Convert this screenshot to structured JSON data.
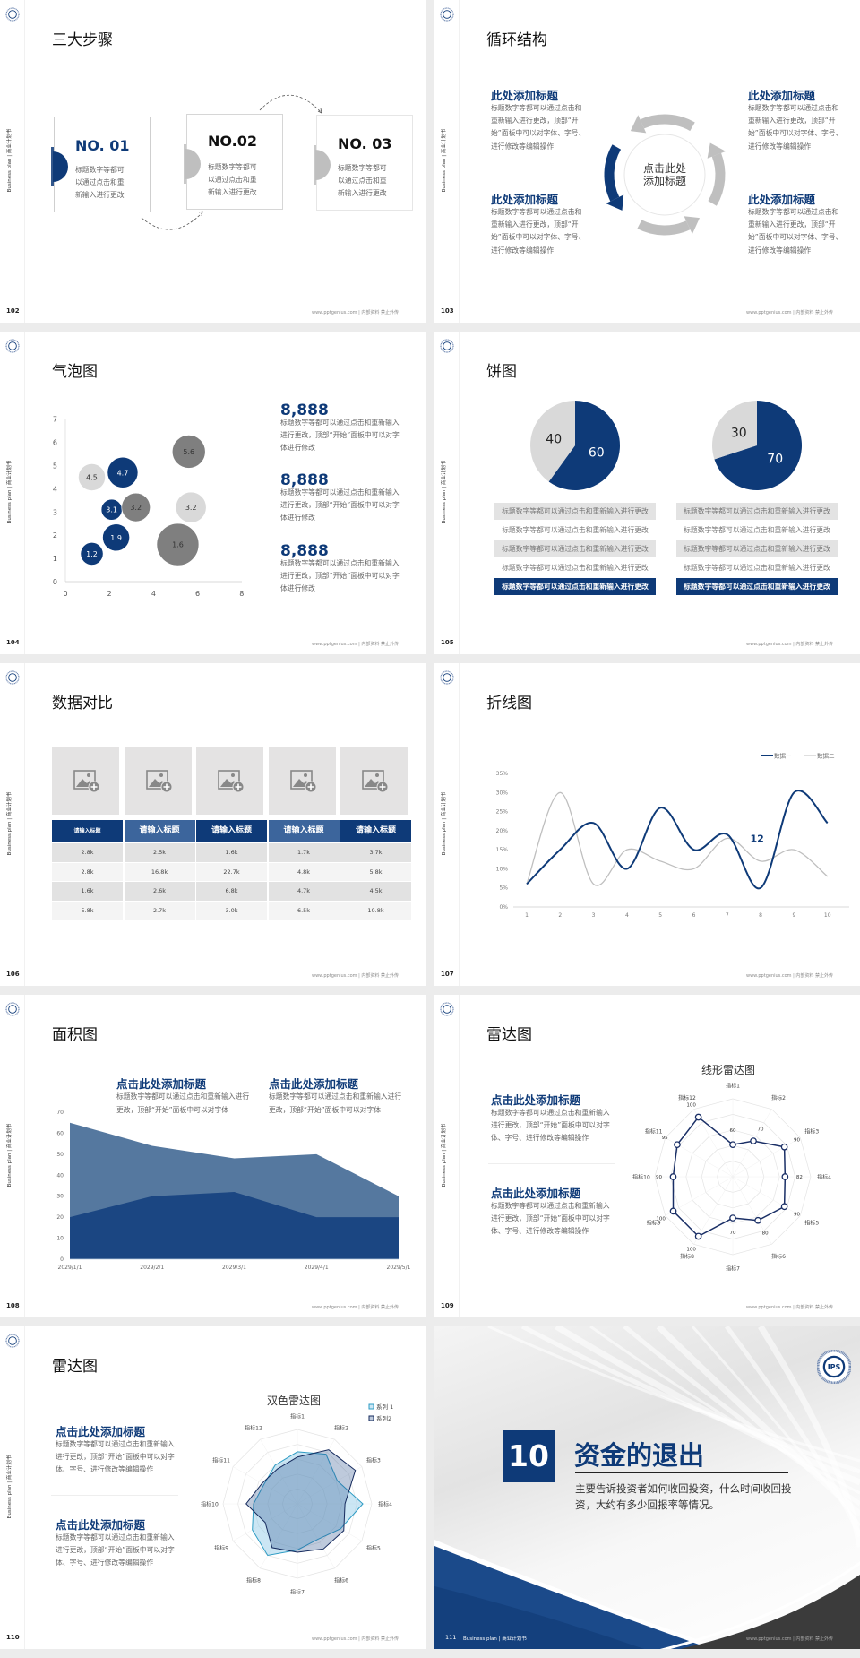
{
  "common": {
    "vertical_label": "Business plan | 商业计划书",
    "footer": "www.pptgenius.com | 内部资料 禁止外传",
    "logo_icon": "university-emblem-icon"
  },
  "colors": {
    "navy": "#0e3a78",
    "gray": "#bfbfbf",
    "dark_gray": "#7f7f7f",
    "light_gray": "#d9d9d9",
    "mid_blue": "#55789f",
    "teal": "#2e9cc4",
    "charcoal": "#3d3d3d"
  },
  "slides": {
    "s102": {
      "page": "102",
      "title": "三大步骤",
      "steps": [
        {
          "label": "NO. 01",
          "text": "标题数字等都可以通过点击和重新输入进行更改"
        },
        {
          "label": "NO.02",
          "text": "标题数字等都可以通过点击和重新输入进行更改"
        },
        {
          "label": "NO. 03",
          "text": "标题数字等都可以通过点击和重新输入进行更改"
        }
      ]
    },
    "s103": {
      "page": "103",
      "title": "循环结构",
      "center": [
        "点击此处",
        "添加标题"
      ],
      "blocks": [
        {
          "heading": "此处添加标题",
          "text": "标题数字等都可以通过点击和重新输入进行更改，顶部“开始”面板中可以对字体、字号、进行修改等编辑操作"
        },
        {
          "heading": "此处添加标题",
          "text": "标题数字等都可以通过点击和重新输入进行更改，顶部“开始”面板中可以对字体、字号、进行修改等编辑操作"
        },
        {
          "heading": "此处添加标题",
          "text": "标题数字等都可以通过点击和重新输入进行更改，顶部“开始”面板中可以对字体、字号、进行修改等编辑操作"
        },
        {
          "heading": "此处添加标题",
          "text": "标题数字等都可以通过点击和重新输入进行更改，顶部“开始”面板中可以对字体、字号、进行修改等编辑操作"
        }
      ]
    },
    "s104": {
      "page": "104",
      "title": "气泡图",
      "stats": [
        {
          "value": "8,888",
          "text": "标题数字等都可以通过点击和重新输入进行更改，顶部“开始”面板中可以对字体进行修改"
        },
        {
          "value": "8,888",
          "text": "标题数字等都可以通过点击和重新输入进行更改，顶部“开始”面板中可以对字体进行修改"
        },
        {
          "value": "8,888",
          "text": "标题数字等都可以通过点击和重新输入进行更改，顶部“开始”面板中可以对字体进行修改"
        }
      ]
    },
    "s105": {
      "page": "105",
      "title": "饼图",
      "lists": [
        [
          "标题数字等都可以通过点击和重新输入进行更改",
          "标题数字等都可以通过点击和重新输入进行更改",
          "标题数字等都可以通过点击和重新输入进行更改",
          "标题数字等都可以通过点击和重新输入进行更改",
          "标题数字等都可以通过点击和重新输入进行更改"
        ],
        [
          "标题数字等都可以通过点击和重新输入进行更改",
          "标题数字等都可以通过点击和重新输入进行更改",
          "标题数字等都可以通过点击和重新输入进行更改",
          "标题数字等都可以通过点击和重新输入进行更改",
          "标题数字等都可以通过点击和重新输入进行更改"
        ]
      ]
    },
    "s106": {
      "page": "106",
      "title": "数据对比",
      "image_icon": "image-add-icon",
      "headers": [
        "请输入标题",
        "请输入标题",
        "请输入标题",
        "请输入标题",
        "请输入标题"
      ],
      "rows": [
        [
          "2.8k",
          "2.5k",
          "1.6k",
          "1.7k",
          "3.7k"
        ],
        [
          "2.8k",
          "16.8k",
          "22.7k",
          "4.8k",
          "5.8k"
        ],
        [
          "1.6k",
          "2.6k",
          "6.8k",
          "4.7k",
          "4.5k"
        ],
        [
          "5.8k",
          "2.7k",
          "3.0k",
          "6.5k",
          "10.8k"
        ]
      ]
    },
    "s107": {
      "page": "107",
      "title": "折线图"
    },
    "s108": {
      "page": "108",
      "title": "面积图",
      "blocks": [
        {
          "heading": "点击此处添加标题",
          "text": "标题数字等都可以通过点击和重新输入进行更改，顶部“开始”面板中可以对字体"
        },
        {
          "heading": "点击此处添加标题",
          "text": "标题数字等都可以通过点击和重新输入进行更改，顶部“开始”面板中可以对字体"
        }
      ]
    },
    "s109": {
      "page": "109",
      "title": "雷达图",
      "blocks": [
        {
          "heading": "点击此处添加标题",
          "text": "标题数字等都可以通过点击和重新输入进行更改，顶部“开始”面板中可以对字体、字号、进行修改等编辑操作"
        },
        {
          "heading": "点击此处添加标题",
          "text": "标题数字等都可以通过点击和重新输入进行更改，顶部“开始”面板中可以对字体、字号、进行修改等编辑操作"
        }
      ]
    },
    "s110": {
      "page": "110",
      "title": "雷达图",
      "blocks": [
        {
          "heading": "点击此处添加标题",
          "text": "标题数字等都可以通过点击和重新输入进行更改，顶部“开始”面板中可以对字体、字号、进行修改等编辑操作"
        },
        {
          "heading": "点击此处添加标题",
          "text": "标题数字等都可以通过点击和重新输入进行更改，顶部“开始”面板中可以对字体、字号、进行修改等编辑操作"
        }
      ]
    },
    "s111": {
      "page": "111",
      "number": "10",
      "title": "资金的退出",
      "description": "主要告诉投资者如何收回投资，什么时间收回投资，大约有多少回报率等情况。",
      "footer_label": "Business plan | 商业计划书",
      "logo_text": "IPS"
    }
  },
  "chart_data": [
    {
      "type": "scatter",
      "subtype": "bubble",
      "xlim": [
        0,
        8
      ],
      "ylim": [
        0,
        7
      ],
      "xticks": [
        "0",
        "2",
        "4",
        "6",
        "8"
      ],
      "yticks": [
        "0",
        "1",
        "2",
        "3",
        "4",
        "5",
        "6",
        "7"
      ],
      "grid": false,
      "points": [
        {
          "x": 1.2,
          "y": 1.2,
          "size": 4,
          "label": "1.2",
          "color": "navy"
        },
        {
          "x": 2.3,
          "y": 1.9,
          "size": 5.7,
          "label": "1.9",
          "color": "navy"
        },
        {
          "x": 2.1,
          "y": 3.1,
          "size": 3.4,
          "label": "3.1",
          "color": "navy"
        },
        {
          "x": 2.6,
          "y": 4.7,
          "size": 7.3,
          "label": "4.7",
          "color": "navy"
        },
        {
          "x": 1.2,
          "y": 4.5,
          "size": 5.7,
          "label": "4.5",
          "color": "light_gray"
        },
        {
          "x": 3.2,
          "y": 3.2,
          "size": 6.4,
          "label": "3.2",
          "color": "dark_gray"
        },
        {
          "x": 5.6,
          "y": 5.6,
          "size": 8.6,
          "label": "5.6",
          "color": "dark_gray"
        },
        {
          "x": 5.7,
          "y": 3.2,
          "size": 7.3,
          "label": "3.2",
          "color": "light_gray"
        },
        {
          "x": 5.1,
          "y": 1.6,
          "size": 13.9,
          "label": "1.6",
          "color": "dark_gray"
        }
      ]
    },
    {
      "type": "pie",
      "values": [
        60,
        40
      ],
      "labels": [
        "60",
        "40"
      ],
      "colors": [
        "navy",
        "light_gray"
      ]
    },
    {
      "type": "pie",
      "values": [
        70,
        30
      ],
      "labels": [
        "70",
        "30"
      ],
      "colors": [
        "navy",
        "light_gray"
      ]
    },
    {
      "type": "line",
      "x": [
        "1",
        "2",
        "3",
        "4",
        "5",
        "6",
        "7",
        "8",
        "9",
        "10"
      ],
      "ylim": [
        0,
        35
      ],
      "yticks": [
        "0%",
        "5%",
        "10%",
        "15%",
        "20%",
        "25%",
        "30%",
        "35%"
      ],
      "grid": false,
      "legend": "top-right",
      "smooth": true,
      "series": [
        {
          "name": "数据一",
          "values": [
            6,
            15,
            22,
            10,
            26,
            15,
            19,
            5,
            30,
            22
          ],
          "color": "navy"
        },
        {
          "name": "数据二",
          "values": [
            6,
            30,
            6,
            15,
            12,
            10,
            18,
            12,
            15,
            8
          ],
          "color": "gray"
        }
      ],
      "annotations": [
        {
          "text": "12",
          "x": 8,
          "y": 18
        }
      ]
    },
    {
      "type": "area",
      "categories": [
        "2029/1/1",
        "2029/2/1",
        "2029/3/1",
        "2029/4/1",
        "2029/5/1"
      ],
      "ylim": [
        0,
        70
      ],
      "yticks": [
        "0",
        "10",
        "20",
        "30",
        "40",
        "50",
        "60",
        "70"
      ],
      "grid": false,
      "series": [
        {
          "values": [
            65,
            54,
            48,
            50,
            30
          ],
          "color": "mid_blue"
        },
        {
          "values": [
            20,
            30,
            32,
            20,
            20
          ],
          "color": "navy"
        }
      ]
    },
    {
      "type": "radar",
      "title": "线形雷达图",
      "categories": [
        "指标1",
        "指标2",
        "指标3",
        "指标4",
        "指标5",
        "指标6",
        "指标7",
        "指标8",
        "指标9",
        "指标10",
        "指标11",
        "指标12"
      ],
      "values": [
        60,
        70,
        90,
        82,
        90,
        80,
        70,
        100,
        100,
        90,
        95,
        100
      ],
      "data_labels": [
        "60",
        "70",
        "90",
        "82",
        "90",
        "80",
        "70",
        "100",
        "100",
        "90",
        "95",
        "100"
      ],
      "rlim": [
        25,
        110
      ]
    },
    {
      "type": "radar",
      "title": "双色雷达图",
      "categories": [
        "指标1",
        "指标2",
        "指标3",
        "指标4",
        "指标5",
        "指标6",
        "指标7",
        "指标8",
        "指标9",
        "指标10",
        "指标11",
        "指标12"
      ],
      "rlim": [
        0,
        100
      ],
      "legend": "top-right",
      "series": [
        {
          "name": "系列 1",
          "values": [
            70,
            77,
            62,
            88,
            67,
            55,
            62,
            80,
            70,
            59,
            52,
            60
          ],
          "color": "teal"
        },
        {
          "name": "系列2",
          "values": [
            63,
            84,
            90,
            64,
            72,
            70,
            65,
            68,
            50,
            69,
            55,
            54
          ],
          "color": "navy"
        }
      ]
    }
  ]
}
